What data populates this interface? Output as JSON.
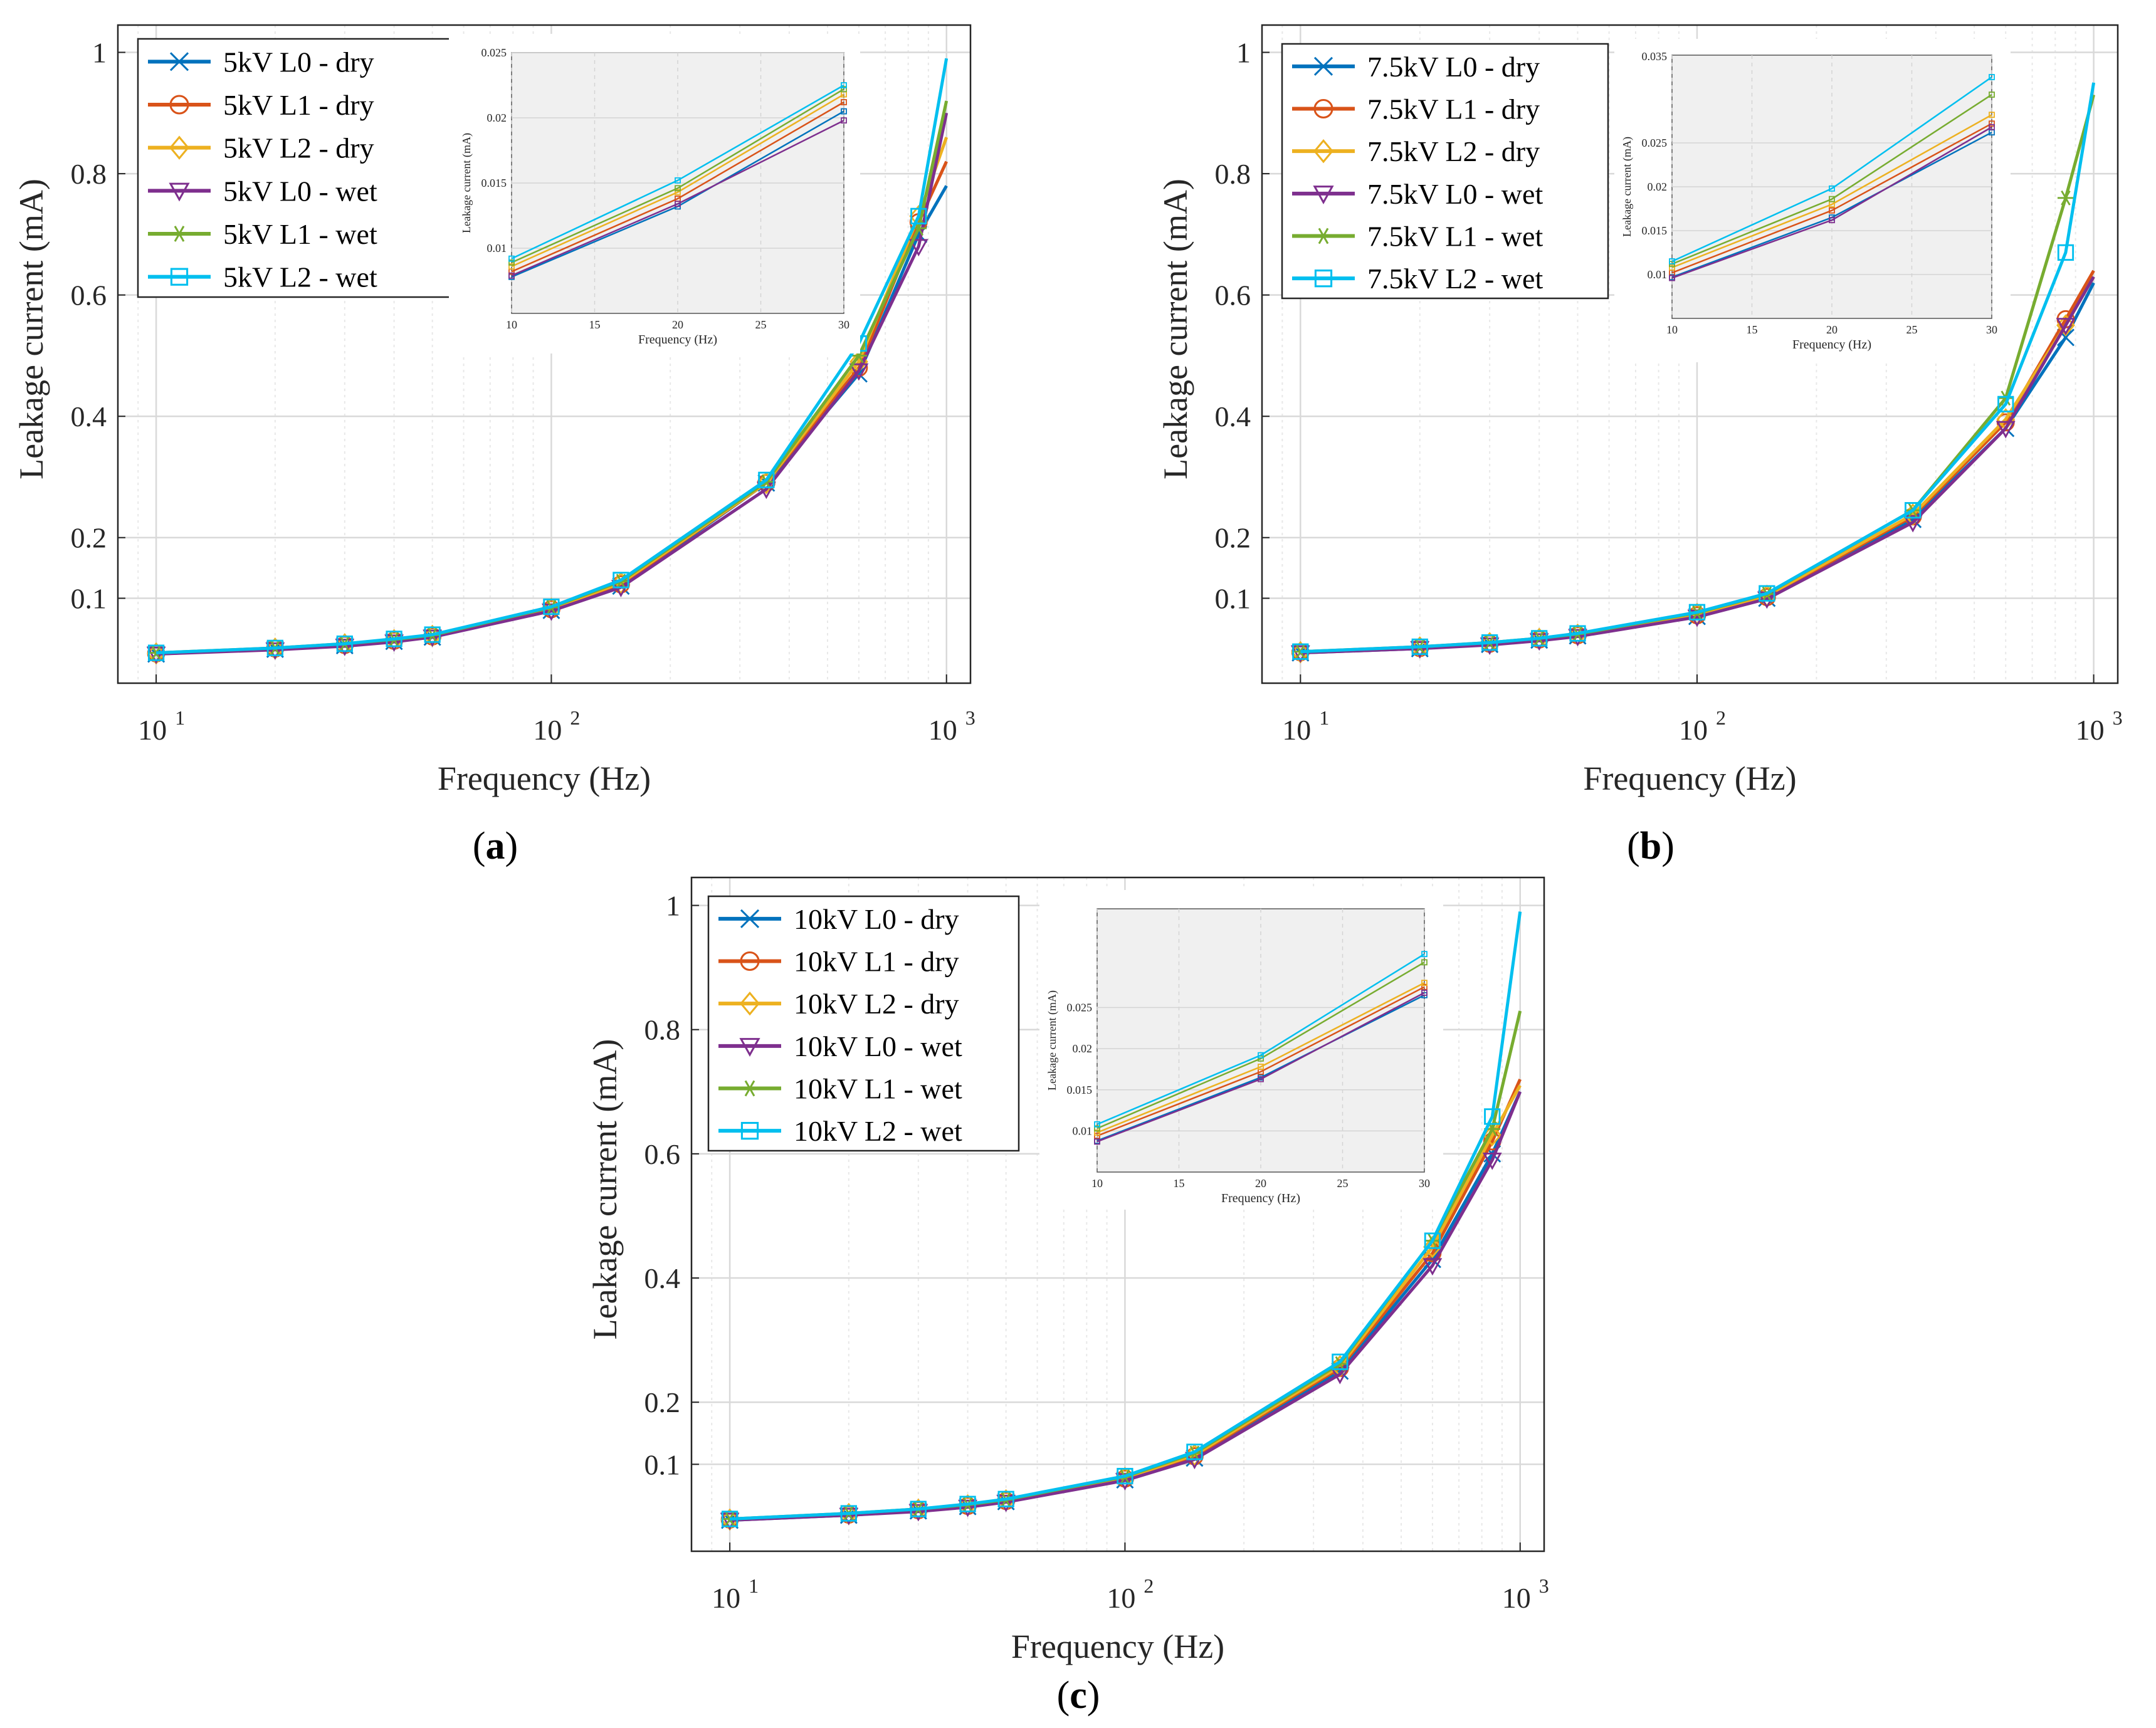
{
  "figure": {
    "description_labels": [
      "(a)",
      "(b)",
      "(c)"
    ]
  },
  "colors": {
    "L0_dry": "#0072BD",
    "L1_dry": "#D95319",
    "L2_dry": "#EDB120",
    "L0_wet": "#7E2F8E",
    "L1_wet": "#77AC30",
    "L2_wet": "#00BFEF",
    "grid": "#DCDCDC",
    "inset_bg": "#F0F0F0"
  },
  "chart_data": [
    {
      "type": "line",
      "panel_label": "a",
      "xscale": "log",
      "xlabel": "Frequency (Hz)",
      "ylabel": "Leakage current (mA)",
      "xlim": [
        8,
        1150
      ],
      "ylim": [
        -0.04,
        1.045
      ],
      "xticks": [
        10,
        100,
        1000
      ],
      "xtick_labels": [
        "10",
        "10",
        "10"
      ],
      "xtick_exponents": [
        "1",
        "2",
        "3"
      ],
      "yticks": [
        0.1,
        0.2,
        0.4,
        0.6,
        0.8,
        1
      ],
      "ytick_labels": [
        "0.1",
        "0.2",
        "0.4",
        "0.6",
        "0.8",
        "1"
      ],
      "grid": true,
      "legend_position": "top-left",
      "x": [
        10,
        20,
        30,
        40,
        50,
        100,
        150,
        350,
        600,
        850,
        1000
      ],
      "series": [
        {
          "name": "5kV L0 - dry",
          "key": "L0_dry",
          "marker": "x",
          "values": [
            0.008,
            0.016,
            0.022,
            0.029,
            0.036,
            0.08,
            0.12,
            0.29,
            0.47,
            0.7,
            0.78
          ]
        },
        {
          "name": "5kV L1 - dry",
          "key": "L1_dry",
          "marker": "o",
          "values": [
            0.009,
            0.017,
            0.023,
            0.03,
            0.037,
            0.082,
            0.123,
            0.29,
            0.48,
            0.72,
            0.82
          ]
        },
        {
          "name": "5kV L2 - dry",
          "key": "L2_dry",
          "marker": "diamond",
          "values": [
            0.009,
            0.017,
            0.024,
            0.031,
            0.038,
            0.083,
            0.125,
            0.29,
            0.49,
            0.73,
            0.86
          ]
        },
        {
          "name": "5kV L0 - wet",
          "key": "L0_wet",
          "marker": "triangle-down",
          "values": [
            0.008,
            0.015,
            0.021,
            0.028,
            0.036,
            0.079,
            0.118,
            0.28,
            0.475,
            0.68,
            0.9
          ]
        },
        {
          "name": "5kV L1 - wet",
          "key": "L1_wet",
          "marker": "star",
          "values": [
            0.01,
            0.018,
            0.025,
            0.032,
            0.039,
            0.085,
            0.128,
            0.292,
            0.5,
            0.71,
            0.92
          ]
        },
        {
          "name": "5kV L2 - wet",
          "key": "L2_wet",
          "marker": "square",
          "values": [
            0.01,
            0.018,
            0.025,
            0.033,
            0.04,
            0.086,
            0.13,
            0.295,
            0.52,
            0.73,
            0.99
          ]
        }
      ],
      "inset": {
        "xlabel": "Frequency (Hz)",
        "ylabel": "Leakage current (mA)",
        "xlim": [
          10,
          30
        ],
        "ylim": [
          0.005,
          0.025
        ],
        "xticks": [
          10,
          15,
          20,
          25,
          30
        ],
        "xtick_labels": [
          "10",
          "15",
          "20",
          "25",
          "30"
        ],
        "yticks": [
          0.01,
          0.015,
          0.02,
          0.025
        ],
        "ytick_labels": [
          "0.01",
          "0.015",
          "0.02",
          "0.025"
        ],
        "x": [
          10,
          20,
          30
        ],
        "series": [
          {
            "key": "L0_dry",
            "values": [
              0.0078,
              0.0132,
              0.0205
            ]
          },
          {
            "key": "L1_dry",
            "values": [
              0.0082,
              0.0138,
              0.0212
            ]
          },
          {
            "key": "L2_dry",
            "values": [
              0.0086,
              0.0143,
              0.0218
            ]
          },
          {
            "key": "L0_wet",
            "values": [
              0.0079,
              0.0134,
              0.0198
            ]
          },
          {
            "key": "L1_wet",
            "values": [
              0.0089,
              0.0146,
              0.0222
            ]
          },
          {
            "key": "L2_wet",
            "values": [
              0.0092,
              0.0152,
              0.0225
            ]
          }
        ]
      }
    },
    {
      "type": "line",
      "panel_label": "b",
      "xscale": "log",
      "xlabel": "Frequency (Hz)",
      "ylabel": "Leakage current (mA)",
      "xlim": [
        8,
        1150
      ],
      "ylim": [
        -0.04,
        1.045
      ],
      "xticks": [
        10,
        100,
        1000
      ],
      "xtick_labels": [
        "10",
        "10",
        "10"
      ],
      "xtick_exponents": [
        "1",
        "2",
        "3"
      ],
      "yticks": [
        0.1,
        0.2,
        0.4,
        0.6,
        0.8,
        1
      ],
      "ytick_labels": [
        "0.1",
        "0.2",
        "0.4",
        "0.6",
        "0.8",
        "1"
      ],
      "grid": true,
      "legend_position": "top-left",
      "x": [
        10,
        20,
        30,
        40,
        50,
        100,
        150,
        350,
        600,
        850,
        1000
      ],
      "series": [
        {
          "name": "7.5kV L0 - dry",
          "key": "L0_dry",
          "marker": "x",
          "values": [
            0.01,
            0.017,
            0.024,
            0.031,
            0.038,
            0.07,
            0.1,
            0.23,
            0.38,
            0.53,
            0.62
          ]
        },
        {
          "name": "7.5kV L1 - dry",
          "key": "L1_dry",
          "marker": "o",
          "values": [
            0.011,
            0.018,
            0.025,
            0.032,
            0.039,
            0.072,
            0.102,
            0.235,
            0.39,
            0.56,
            0.64
          ]
        },
        {
          "name": "7.5kV L2 - dry",
          "key": "L2_dry",
          "marker": "diamond",
          "values": [
            0.011,
            0.019,
            0.026,
            0.033,
            0.04,
            0.074,
            0.104,
            0.238,
            0.395,
            0.55,
            0.63
          ]
        },
        {
          "name": "7.5kV L0 - wet",
          "key": "L0_wet",
          "marker": "triangle-down",
          "values": [
            0.01,
            0.017,
            0.023,
            0.03,
            0.037,
            0.069,
            0.099,
            0.225,
            0.38,
            0.55,
            0.63
          ]
        },
        {
          "name": "7.5kV L1 - wet",
          "key": "L1_wet",
          "marker": "star",
          "values": [
            0.012,
            0.02,
            0.027,
            0.034,
            0.041,
            0.076,
            0.107,
            0.245,
            0.43,
            0.76,
            0.93
          ]
        },
        {
          "name": "7.5kV L2 - wet",
          "key": "L2_wet",
          "marker": "square",
          "values": [
            0.012,
            0.02,
            0.027,
            0.034,
            0.042,
            0.077,
            0.108,
            0.245,
            0.42,
            0.67,
            0.95
          ]
        }
      ],
      "inset": {
        "xlabel": "Frequency (Hz)",
        "ylabel": "Leakage current (mA)",
        "xlim": [
          10,
          30
        ],
        "ylim": [
          0.005,
          0.035
        ],
        "xticks": [
          10,
          15,
          20,
          25,
          30
        ],
        "xtick_labels": [
          "10",
          "15",
          "20",
          "25",
          "30"
        ],
        "yticks": [
          0.01,
          0.015,
          0.02,
          0.025
        ],
        "ytick_labels": [
          "0.01",
          "0.015",
          "0.02",
          "0.025"
        ],
        "top_tick_label": "0.035",
        "x": [
          10,
          20,
          30
        ],
        "series": [
          {
            "key": "L0_dry",
            "values": [
              0.0097,
              0.0165,
              0.0262
            ]
          },
          {
            "key": "L1_dry",
            "values": [
              0.0102,
              0.0173,
              0.0272
            ]
          },
          {
            "key": "L2_dry",
            "values": [
              0.0108,
              0.018,
              0.0282
            ]
          },
          {
            "key": "L0_wet",
            "values": [
              0.0096,
              0.0162,
              0.0268
            ]
          },
          {
            "key": "L1_wet",
            "values": [
              0.0112,
              0.0186,
              0.0305
            ]
          },
          {
            "key": "L2_wet",
            "values": [
              0.0115,
              0.0198,
              0.0325
            ]
          }
        ]
      }
    },
    {
      "type": "line",
      "panel_label": "c",
      "xscale": "log",
      "xlabel": "Frequency (Hz)",
      "ylabel": "Leakage current (mA)",
      "xlim": [
        8,
        1150
      ],
      "ylim": [
        -0.04,
        1.045
      ],
      "xticks": [
        10,
        100,
        1000
      ],
      "xtick_labels": [
        "10",
        "10",
        "10"
      ],
      "xtick_exponents": [
        "1",
        "2",
        "3"
      ],
      "yticks": [
        0.1,
        0.2,
        0.4,
        0.6,
        0.8,
        1
      ],
      "ytick_labels": [
        "0.1",
        "0.2",
        "0.4",
        "0.6",
        "0.8",
        "1"
      ],
      "grid": true,
      "legend_position": "top-left",
      "x": [
        10,
        20,
        30,
        40,
        50,
        100,
        150,
        350,
        600,
        850,
        1000
      ],
      "series": [
        {
          "name": "10kV L0 - dry",
          "key": "L0_dry",
          "marker": "x",
          "values": [
            0.01,
            0.018,
            0.025,
            0.032,
            0.04,
            0.075,
            0.11,
            0.25,
            0.43,
            0.6,
            0.7
          ]
        },
        {
          "name": "10kV L1 - dry",
          "key": "L1_dry",
          "marker": "o",
          "values": [
            0.011,
            0.019,
            0.026,
            0.033,
            0.041,
            0.077,
            0.113,
            0.255,
            0.44,
            0.62,
            0.72
          ]
        },
        {
          "name": "10kV L2 - dry",
          "key": "L2_dry",
          "marker": "diamond",
          "values": [
            0.011,
            0.02,
            0.027,
            0.034,
            0.042,
            0.078,
            0.115,
            0.258,
            0.45,
            0.63,
            0.71
          ]
        },
        {
          "name": "10kV L0 - wet",
          "key": "L0_wet",
          "marker": "triangle-down",
          "values": [
            0.01,
            0.018,
            0.024,
            0.031,
            0.039,
            0.074,
            0.108,
            0.245,
            0.42,
            0.59,
            0.7
          ]
        },
        {
          "name": "10kV L1 - wet",
          "key": "L1_wet",
          "marker": "star",
          "values": [
            0.012,
            0.021,
            0.028,
            0.035,
            0.043,
            0.08,
            0.118,
            0.262,
            0.46,
            0.64,
            0.83
          ]
        },
        {
          "name": "10kV L2 - wet",
          "key": "L2_wet",
          "marker": "square",
          "values": [
            0.012,
            0.021,
            0.028,
            0.036,
            0.044,
            0.081,
            0.12,
            0.265,
            0.46,
            0.66,
            0.99
          ]
        }
      ],
      "inset": {
        "xlabel": "Frequency (Hz)",
        "ylabel": "Leakage current (mA)",
        "xlim": [
          10,
          30
        ],
        "ylim": [
          0.005,
          0.037
        ],
        "xticks": [
          10,
          15,
          20,
          25,
          30
        ],
        "xtick_labels": [
          "10",
          "15",
          "20",
          "25",
          "30"
        ],
        "yticks": [
          0.01,
          0.015,
          0.02,
          0.025
        ],
        "ytick_labels": [
          "0.01",
          "0.015",
          "0.02",
          "0.025"
        ],
        "x": [
          10,
          20,
          30
        ],
        "series": [
          {
            "key": "L0_dry",
            "values": [
              0.0088,
              0.0165,
              0.0265
            ]
          },
          {
            "key": "L1_dry",
            "values": [
              0.0094,
              0.0172,
              0.0275
            ]
          },
          {
            "key": "L2_dry",
            "values": [
              0.0098,
              0.0178,
              0.028
            ]
          },
          {
            "key": "L0_wet",
            "values": [
              0.0087,
              0.0163,
              0.0268
            ]
          },
          {
            "key": "L1_wet",
            "values": [
              0.0103,
              0.0188,
              0.0305
            ]
          },
          {
            "key": "L2_wet",
            "values": [
              0.0108,
              0.0192,
              0.0315
            ]
          }
        ]
      }
    }
  ]
}
